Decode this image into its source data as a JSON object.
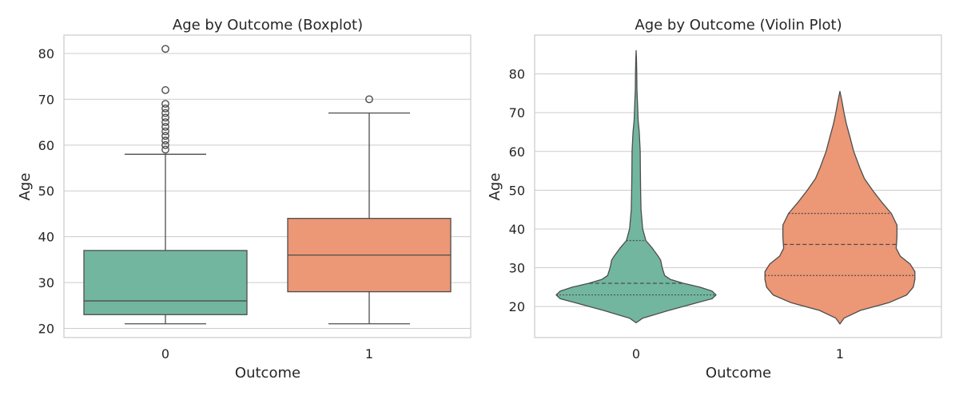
{
  "chart_data": [
    {
      "type": "box",
      "title": "Age by Outcome (Boxplot)",
      "xlabel": "Outcome",
      "ylabel": "Age",
      "ylim": [
        18,
        84
      ],
      "yticks": [
        20,
        30,
        40,
        50,
        60,
        70,
        80
      ],
      "grid": "horizontal",
      "categories": [
        "0",
        "1"
      ],
      "colors": [
        "#72b6a0",
        "#ec9775"
      ],
      "boxes": [
        {
          "category": "0",
          "whisker_low": 21,
          "q1": 23,
          "median": 26,
          "q3": 37,
          "whisker_high": 58,
          "outliers": [
            59,
            60,
            61,
            62,
            63,
            64,
            65,
            66,
            67,
            68,
            69,
            72,
            81
          ]
        },
        {
          "category": "1",
          "whisker_low": 21,
          "q1": 28,
          "median": 36,
          "q3": 44,
          "whisker_high": 67,
          "outliers": [
            70
          ]
        }
      ]
    },
    {
      "type": "violin",
      "title": "Age by Outcome (Violin Plot)",
      "xlabel": "Outcome",
      "ylabel": "Age",
      "ylim": [
        12,
        90
      ],
      "yticks": [
        20,
        30,
        40,
        50,
        60,
        70,
        80
      ],
      "grid": "horizontal",
      "categories": [
        "0",
        "1"
      ],
      "colors": [
        "#72b6a0",
        "#ec9775"
      ],
      "violins": [
        {
          "category": "0",
          "quartiles": [
            23,
            26,
            37
          ],
          "density": [
            [
              15.8,
              0.0
            ],
            [
              17,
              0.08
            ],
            [
              19,
              0.4
            ],
            [
              21,
              0.75
            ],
            [
              22,
              0.93
            ],
            [
              23,
              0.98
            ],
            [
              24,
              0.93
            ],
            [
              25,
              0.78
            ],
            [
              26,
              0.58
            ],
            [
              27,
              0.42
            ],
            [
              28,
              0.35
            ],
            [
              30,
              0.32
            ],
            [
              32,
              0.3
            ],
            [
              33,
              0.27
            ],
            [
              35,
              0.2
            ],
            [
              37,
              0.12
            ],
            [
              40,
              0.08
            ],
            [
              45,
              0.06
            ],
            [
              50,
              0.055
            ],
            [
              55,
              0.052
            ],
            [
              60,
              0.05
            ],
            [
              65,
              0.038
            ],
            [
              68,
              0.025
            ],
            [
              72,
              0.018
            ],
            [
              76,
              0.01
            ],
            [
              80,
              0.008
            ],
            [
              84,
              0.004
            ],
            [
              86,
              0.0
            ]
          ]
        },
        {
          "category": "1",
          "quartiles": [
            28,
            36,
            44
          ],
          "density": [
            [
              15.5,
              0.0
            ],
            [
              17,
              0.05
            ],
            [
              19,
              0.25
            ],
            [
              21,
              0.6
            ],
            [
              23,
              0.82
            ],
            [
              25,
              0.9
            ],
            [
              27,
              0.92
            ],
            [
              29,
              0.92
            ],
            [
              31,
              0.86
            ],
            [
              33,
              0.74
            ],
            [
              35,
              0.69
            ],
            [
              38,
              0.7
            ],
            [
              41,
              0.7
            ],
            [
              44,
              0.63
            ],
            [
              47,
              0.51
            ],
            [
              50,
              0.4
            ],
            [
              53,
              0.3
            ],
            [
              56,
              0.24
            ],
            [
              60,
              0.17
            ],
            [
              64,
              0.12
            ],
            [
              67,
              0.08
            ],
            [
              70,
              0.05
            ],
            [
              73,
              0.025
            ],
            [
              75.5,
              0.0
            ]
          ]
        }
      ]
    }
  ]
}
